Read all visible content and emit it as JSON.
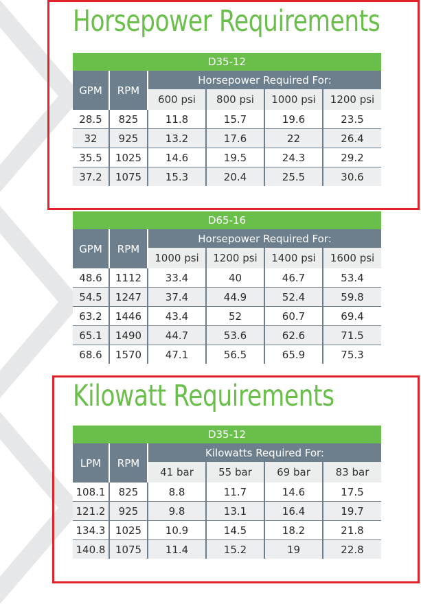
{
  "colors": {
    "green": "#6abf4b",
    "slate": "#6d7f8c",
    "red": "#e3212b",
    "stripe": "#edeeef"
  },
  "section1": {
    "title": "Horsepower Requirements",
    "table1": {
      "model": "D35-12",
      "col_gpm": "GPM",
      "col_rpm": "RPM",
      "group": "Horsepower Required For:",
      "pressures": [
        "600 psi",
        "800 psi",
        "1000 psi",
        "1200 psi"
      ],
      "rows": [
        [
          "28.5",
          "825",
          "11.8",
          "15.7",
          "19.6",
          "23.5"
        ],
        [
          "32",
          "925",
          "13.2",
          "17.6",
          "22",
          "26.4"
        ],
        [
          "35.5",
          "1025",
          "14.6",
          "19.5",
          "24.3",
          "29.2"
        ],
        [
          "37.2",
          "1075",
          "15.3",
          "20.4",
          "25.5",
          "30.6"
        ]
      ]
    },
    "table2": {
      "model": "D65-16",
      "col_gpm": "GPM",
      "col_rpm": "RPM",
      "group": "Horsepower Required For:",
      "pressures": [
        "1000 psi",
        "1200 psi",
        "1400 psi",
        "1600 psi"
      ],
      "rows": [
        [
          "48.6",
          "1112",
          "33.4",
          "40",
          "46.7",
          "53.4"
        ],
        [
          "54.5",
          "1247",
          "37.4",
          "44.9",
          "52.4",
          "59.8"
        ],
        [
          "63.2",
          "1446",
          "43.4",
          "52",
          "60.7",
          "69.4"
        ],
        [
          "65.1",
          "1490",
          "44.7",
          "53.6",
          "62.6",
          "71.5"
        ],
        [
          "68.6",
          "1570",
          "47.1",
          "56.5",
          "65.9",
          "75.3"
        ]
      ]
    }
  },
  "section2": {
    "title": "Kilowatt Requirements",
    "table3": {
      "model": "D35-12",
      "col_lpm": "LPM",
      "col_rpm": "RPM",
      "group": "Kilowatts Required For:",
      "pressures": [
        "41 bar",
        "55 bar",
        "69 bar",
        "83 bar"
      ],
      "rows": [
        [
          "108.1",
          "825",
          "8.8",
          "11.7",
          "14.6",
          "17.5"
        ],
        [
          "121.2",
          "925",
          "9.8",
          "13.1",
          "16.4",
          "19.7"
        ],
        [
          "134.3",
          "1025",
          "10.9",
          "14.5",
          "18.2",
          "21.8"
        ],
        [
          "140.8",
          "1075",
          "11.4",
          "15.2",
          "19",
          "22.8"
        ]
      ]
    }
  }
}
